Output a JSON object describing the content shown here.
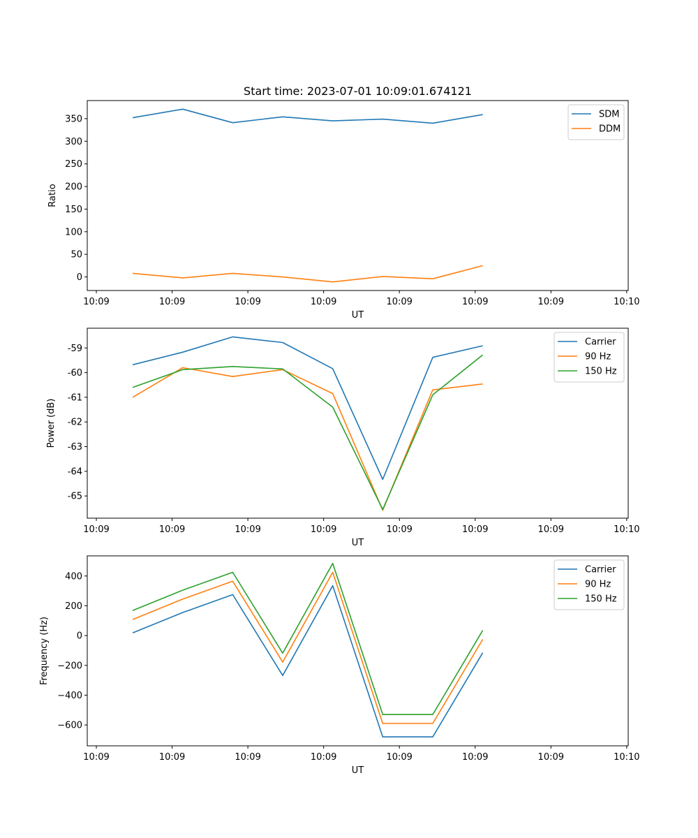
{
  "figure": {
    "title": "Start time: 2023-07-01 10:09:01.674121"
  },
  "chart_data": [
    {
      "type": "line",
      "title": "Start time: 2023-07-01 10:09:01.674121",
      "xlabel": "UT",
      "ylabel": "Ratio",
      "x_tick_labels": [
        "10:09",
        "10:09",
        "10:09",
        "10:09",
        "10:09",
        "10:09",
        "10:09",
        "10:10"
      ],
      "x_tick_values": [
        0,
        5,
        10,
        15,
        20,
        25,
        30,
        35
      ],
      "xlim": [
        -0.6,
        35.1
      ],
      "x": [
        2.4,
        5.7,
        9.0,
        12.3,
        15.6,
        18.9,
        22.2,
        25.5
      ],
      "y_ticks": [
        0,
        50,
        100,
        150,
        200,
        250,
        300,
        350
      ],
      "ylim": [
        -30,
        390
      ],
      "legend_position": "top-right",
      "series": [
        {
          "name": "SDM",
          "color": "#1f77b4",
          "values": [
            352,
            371,
            341,
            354,
            345,
            349,
            340,
            359
          ]
        },
        {
          "name": "DDM",
          "color": "#ff7f0e",
          "values": [
            8,
            -2,
            8,
            0,
            -11,
            1,
            -4,
            25
          ]
        }
      ]
    },
    {
      "type": "line",
      "title": "",
      "xlabel": "UT",
      "ylabel": "Power (dB)",
      "x_tick_labels": [
        "10:09",
        "10:09",
        "10:09",
        "10:09",
        "10:09",
        "10:09",
        "10:09",
        "10:10"
      ],
      "x_tick_values": [
        0,
        5,
        10,
        15,
        20,
        25,
        30,
        35
      ],
      "xlim": [
        -0.6,
        35.1
      ],
      "x": [
        2.4,
        5.7,
        9.0,
        12.3,
        15.6,
        18.9,
        22.2,
        25.5
      ],
      "y_ticks": [
        -65,
        -64,
        -63,
        -62,
        -61,
        -60,
        -59
      ],
      "ylim": [
        -65.9,
        -58.2
      ],
      "legend_position": "top-right",
      "series": [
        {
          "name": "Carrier",
          "color": "#1f77b4",
          "values": [
            -59.68,
            -59.17,
            -58.55,
            -58.78,
            -59.84,
            -64.33,
            -59.38,
            -58.91
          ]
        },
        {
          "name": "90 Hz",
          "color": "#ff7f0e",
          "values": [
            -61.0,
            -59.8,
            -60.16,
            -59.88,
            -60.85,
            -65.58,
            -60.7,
            -60.46
          ]
        },
        {
          "name": "150 Hz",
          "color": "#2ca02c",
          "values": [
            -60.6,
            -59.88,
            -59.75,
            -59.85,
            -61.4,
            -65.55,
            -60.9,
            -59.28
          ]
        }
      ]
    },
    {
      "type": "line",
      "title": "",
      "xlabel": "UT",
      "ylabel": "Frequency (Hz)",
      "x_tick_labels": [
        "10:09",
        "10:09",
        "10:09",
        "10:09",
        "10:09",
        "10:09",
        "10:09",
        "10:10"
      ],
      "x_tick_values": [
        0,
        5,
        10,
        15,
        20,
        25,
        30,
        35
      ],
      "xlim": [
        -0.6,
        35.1
      ],
      "x": [
        2.4,
        5.7,
        9.0,
        12.3,
        15.6,
        18.9,
        22.2,
        25.5
      ],
      "y_ticks": [
        -600,
        -400,
        -200,
        0,
        200,
        400
      ],
      "y_tick_labels": [
        "−600",
        "−400",
        "−200",
        "0",
        "200",
        "400"
      ],
      "ylim": [
        -740,
        535
      ],
      "legend_position": "top-right",
      "series": [
        {
          "name": "Carrier",
          "color": "#1f77b4",
          "values": [
            18,
            155,
            275,
            -268,
            335,
            -680,
            -680,
            -115
          ]
        },
        {
          "name": "90 Hz",
          "color": "#ff7f0e",
          "values": [
            108,
            245,
            365,
            -178,
            425,
            -590,
            -590,
            -25
          ]
        },
        {
          "name": "150 Hz",
          "color": "#2ca02c",
          "values": [
            168,
            305,
            425,
            -118,
            485,
            -530,
            -530,
            35
          ]
        }
      ]
    }
  ]
}
